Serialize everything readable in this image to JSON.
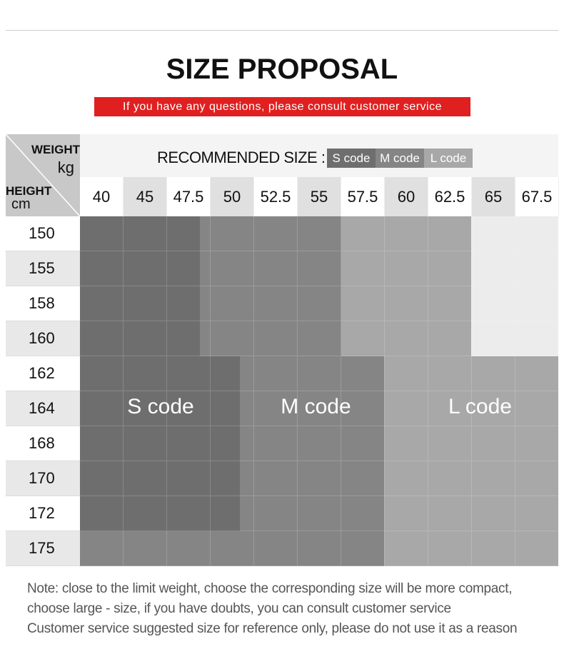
{
  "header": {
    "title": "SIZE PROPOSAL",
    "subtitle": "If you have any questions, please consult customer service"
  },
  "table": {
    "corner_weight": [
      "WEIGHT",
      "kg"
    ],
    "corner_height": [
      "HEIGHT",
      "cm"
    ],
    "legend": {
      "label": "RECOMMENDED SIZE :",
      "items": [
        "S code",
        "M code",
        "L code"
      ]
    },
    "weights": [
      "40",
      "45",
      "47.5",
      "50",
      "52.5",
      "55",
      "57.5",
      "60",
      "62.5",
      "65",
      "67.5"
    ],
    "heights": [
      "150",
      "155",
      "158",
      "160",
      "162",
      "164",
      "168",
      "170",
      "172",
      "175"
    ],
    "regions": [
      "S code",
      "M code",
      "L code"
    ]
  },
  "notes": [
    "Note: close to the limit weight, choose the corresponding size will be more compact,",
    "choose large - size, if you have doubts, you can consult customer service",
    "Customer service suggested size for reference only, please do not use it as a reason"
  ]
}
